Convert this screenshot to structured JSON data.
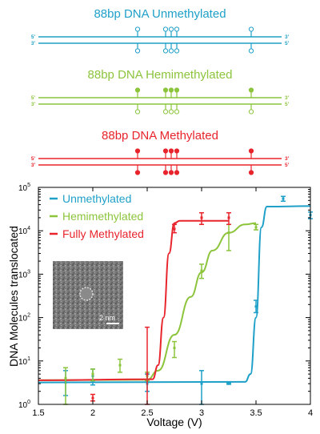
{
  "colors": {
    "unmethylated": "#1fa0c8",
    "hemimethylated": "#8cc43c",
    "methylated": "#e8242c",
    "axis": "#000000"
  },
  "strands": [
    {
      "title": "88bp DNA Unmethylated",
      "color": "#1fa0c8",
      "top_left": "5'",
      "top_right": "3'",
      "bottom_left": "3'",
      "bottom_right": "5'",
      "top_sites": "open",
      "bottom_sites": "open"
    },
    {
      "title": "88bp DNA Hemimethylated",
      "color": "#8cc43c",
      "top_left": "5'",
      "top_right": "3'",
      "bottom_left": "3'",
      "bottom_right": "5'",
      "top_sites": "filled",
      "bottom_sites": "open"
    },
    {
      "title": "88bp DNA Methylated",
      "color": "#e8242c",
      "top_left": "5'",
      "top_right": "3'",
      "bottom_left": "3'",
      "bottom_right": "5'",
      "top_sites": "filled",
      "bottom_sites": "filled"
    }
  ],
  "inset": {
    "scale_label": "2 nm",
    "description_icon": "tem-nanopore-image"
  },
  "chart_data": {
    "type": "scatter",
    "xlabel": "Voltage (V)",
    "ylabel": "DNA Molecules translocated",
    "xlim": [
      1.5,
      4
    ],
    "ylim": [
      1,
      100000
    ],
    "yscale": "log",
    "xticks": [
      "1.5",
      "2",
      "2.5",
      "3",
      "3.5",
      "4"
    ],
    "yticks": [
      {
        "base": "10",
        "exp": "0"
      },
      {
        "base": "10",
        "exp": "1"
      },
      {
        "base": "10",
        "exp": "2"
      },
      {
        "base": "10",
        "exp": "3"
      },
      {
        "base": "10",
        "exp": "4"
      },
      {
        "base": "10",
        "exp": "5"
      }
    ],
    "legend_position": "top-left",
    "series": [
      {
        "name": "Unmethylated",
        "color": "#1fa0c8",
        "points": [
          {
            "x": 1.75,
            "y": 3.2,
            "lo": 1.6,
            "hi": 6
          },
          {
            "x": 2.0,
            "y": 4.5,
            "lo": 2.8,
            "hi": 6.5
          },
          {
            "x": 2.5,
            "y": 3.0,
            "lo": 2.0,
            "hi": 5
          },
          {
            "x": 3.0,
            "y": 3.0,
            "lo": 1.0,
            "hi": 6
          },
          {
            "x": 3.25,
            "y": 3.0,
            "lo": 2.9,
            "hi": 3.1
          },
          {
            "x": 3.5,
            "y": 180,
            "lo": 130,
            "hi": 250
          },
          {
            "x": 3.75,
            "y": 55000,
            "lo": 48000,
            "hi": 62000
          },
          {
            "x": 4.0,
            "y": 23000,
            "lo": 19000,
            "hi": 27000
          }
        ],
        "fit": [
          [
            1.5,
            3.2
          ],
          [
            3.4,
            3.3
          ],
          [
            3.45,
            5
          ],
          [
            3.5,
            100
          ],
          [
            3.55,
            12000
          ],
          [
            3.6,
            36000
          ],
          [
            4.0,
            37000
          ]
        ]
      },
      {
        "name": "Hemimethylated",
        "color": "#8cc43c",
        "points": [
          {
            "x": 1.75,
            "y": 4.0,
            "lo": 1.0,
            "hi": 7
          },
          {
            "x": 2.0,
            "y": 5.0,
            "lo": 3.5,
            "hi": 6.5
          },
          {
            "x": 2.25,
            "y": 8.0,
            "lo": 5.5,
            "hi": 11
          },
          {
            "x": 2.5,
            "y": 4.5,
            "lo": 3.5,
            "hi": 5.5
          },
          {
            "x": 2.75,
            "y": 20,
            "lo": 12,
            "hi": 28
          },
          {
            "x": 3.0,
            "y": 1200,
            "lo": 800,
            "hi": 1700
          },
          {
            "x": 3.25,
            "y": 9000,
            "lo": 3500,
            "hi": 14000
          },
          {
            "x": 3.5,
            "y": 12000,
            "lo": 10500,
            "hi": 14000
          }
        ],
        "fit": [
          [
            1.5,
            3.6
          ],
          [
            2.5,
            3.7
          ],
          [
            2.6,
            6
          ],
          [
            2.75,
            40
          ],
          [
            2.9,
            300
          ],
          [
            3.0,
            1100
          ],
          [
            3.1,
            3500
          ],
          [
            3.25,
            9000
          ],
          [
            3.4,
            14000
          ],
          [
            3.5,
            15000
          ]
        ]
      },
      {
        "name": "Fully Methylated",
        "color": "#e8242c",
        "points": [
          {
            "x": 2.0,
            "y": 1.4,
            "lo": 1.2,
            "hi": 1.7
          },
          {
            "x": 2.5,
            "y": 5.0,
            "lo": 1.0,
            "hi": 60
          },
          {
            "x": 2.75,
            "y": 11000,
            "lo": 9000,
            "hi": 14000
          },
          {
            "x": 3.0,
            "y": 20000,
            "lo": 14000,
            "hi": 26000
          },
          {
            "x": 3.25,
            "y": 20000,
            "lo": 14000,
            "hi": 26000
          }
        ],
        "fit": [
          [
            1.5,
            3.6
          ],
          [
            2.55,
            3.8
          ],
          [
            2.6,
            8
          ],
          [
            2.65,
            100
          ],
          [
            2.7,
            3000
          ],
          [
            2.75,
            15000
          ],
          [
            2.8,
            17000
          ],
          [
            3.25,
            17000
          ]
        ]
      }
    ]
  }
}
